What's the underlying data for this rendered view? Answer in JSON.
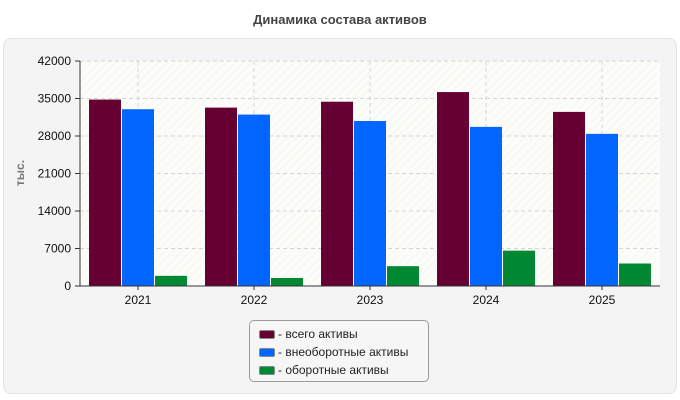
{
  "chart_data": {
    "type": "bar",
    "title": "Динамика состава активов",
    "ylabel": "тыс.",
    "xlabel": "",
    "categories": [
      "2021",
      "2022",
      "2023",
      "2024",
      "2025"
    ],
    "ylim": [
      0,
      42000
    ],
    "yticks": [
      0,
      7000,
      14000,
      21000,
      28000,
      35000,
      42000
    ],
    "grid": true,
    "legend_position": "bottom-center",
    "series": [
      {
        "name": "- всего активы",
        "color": "#660033",
        "values": [
          34800,
          33300,
          34400,
          36200,
          32500
        ]
      },
      {
        "name": "- внеоборотные активы",
        "color": "#0066ff",
        "values": [
          33000,
          32000,
          30800,
          29700,
          28400
        ]
      },
      {
        "name": "- оборотные активы",
        "color": "#008833",
        "values": [
          1900,
          1500,
          3700,
          6600,
          4200
        ]
      }
    ]
  }
}
